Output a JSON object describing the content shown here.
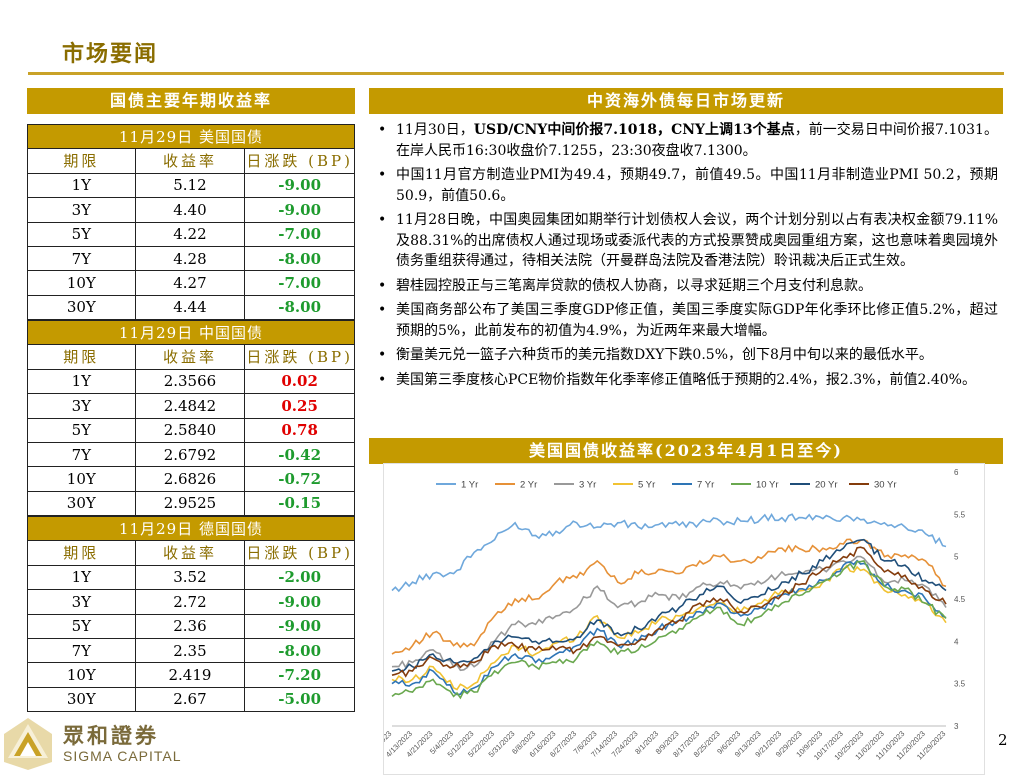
{
  "page_title": "市场要闻",
  "left_header": "国债主要年期收益率",
  "right_header": "中资海外债每日市场更新",
  "chart_header": "美国国债收益率(2023年4月1日至今)",
  "table_headers": [
    "期限",
    "收益率",
    "日涨跌 (BP)"
  ],
  "sections": [
    {
      "title": "11月29日   美国国债",
      "rows": [
        [
          "1Y",
          "5.12",
          "-9.00"
        ],
        [
          "3Y",
          "4.40",
          "-9.00"
        ],
        [
          "5Y",
          "4.22",
          "-7.00"
        ],
        [
          "7Y",
          "4.28",
          "-8.00"
        ],
        [
          "10Y",
          "4.27",
          "-7.00"
        ],
        [
          "30Y",
          "4.44",
          "-8.00"
        ]
      ]
    },
    {
      "title": "11月29日   中国国债",
      "rows": [
        [
          "1Y",
          "2.3566",
          "0.02"
        ],
        [
          "3Y",
          "2.4842",
          "0.25"
        ],
        [
          "5Y",
          "2.5840",
          "0.78"
        ],
        [
          "7Y",
          "2.6792",
          "-0.42"
        ],
        [
          "10Y",
          "2.6826",
          "-0.72"
        ],
        [
          "30Y",
          "2.9525",
          "-0.15"
        ]
      ]
    },
    {
      "title": "11月29日   德国国债",
      "rows": [
        [
          "1Y",
          "3.52",
          "-2.00"
        ],
        [
          "3Y",
          "2.72",
          "-9.00"
        ],
        [
          "5Y",
          "2.36",
          "-9.00"
        ],
        [
          "7Y",
          "2.35",
          "-8.00"
        ],
        [
          "10Y",
          "2.419",
          "-7.20"
        ],
        [
          "30Y",
          "2.67",
          "-5.00"
        ]
      ]
    }
  ],
  "news": [
    {
      "pre": "11月30日，",
      "bold": "USD/CNY中间价报7.1018，CNY上调13个基点",
      "post": "，前一交易日中间价报7.1031。在岸人民币16:30收盘价7.1255，23:30夜盘收7.1300。"
    },
    {
      "pre": "中国11月官方制造业PMI为49.4，预期49.7，前值49.5。中国11月非制造业PMI 50.2，预期50.9，前值50.6。",
      "bold": "",
      "post": ""
    },
    {
      "pre": "11月28日晚，中国奥园集团如期举行计划债权人会议，两个计划分别以占有表决权金额79.11%及88.31%的出席债权人通过现场或委派代表的方式投票赞成奥园重组方案，这也意味着奥园境外债务重组获得通过，待相关法院（开曼群岛法院及香港法院）聆讯裁决后正式生效。",
      "bold": "",
      "post": ""
    },
    {
      "pre": "碧桂园控股正与三笔离岸贷款的债权人协商，以寻求延期三个月支付利息款。",
      "bold": "",
      "post": ""
    },
    {
      "pre": "美国商务部公布了美国三季度GDP修正值，美国三季度实际GDP年化季环比修正值5.2%，超过预期的5%，此前发布的初值为4.9%，为近两年来最大增幅。",
      "bold": "",
      "post": ""
    },
    {
      "pre": "衡量美元兑一篮子六种货币的美元指数DXY下跌0.5%，创下8月中旬以来的最低水平。",
      "bold": "",
      "post": ""
    },
    {
      "pre": "美国第三季度核心PCE物价指数年化季率修正值略低于预期的2.4%，报2.3%，前值2.40%。",
      "bold": "",
      "post": ""
    }
  ],
  "chart_data": {
    "type": "line",
    "ylim": [
      3,
      6
    ],
    "y_ticks": [
      "3",
      "3.5",
      "4",
      "4.5",
      "5",
      "5.5",
      "6"
    ],
    "x_ticks": [
      "4/4/2023",
      "4/13/2023",
      "4/21/2023",
      "5/4/2023",
      "5/12/2023",
      "5/22/2023",
      "5/31/2023",
      "6/8/2023",
      "6/16/2023",
      "6/27/2023",
      "7/6/2023",
      "7/14/2023",
      "7/24/2023",
      "8/1/2023",
      "8/9/2023",
      "8/17/2023",
      "8/25/2023",
      "9/6/2023",
      "9/13/2023",
      "9/21/2023",
      "9/29/2023",
      "10/9/2023",
      "10/17/2023",
      "10/25/2023",
      "11/02/2023",
      "11/10/2023",
      "11/20/2023",
      "11/29/2023"
    ],
    "series": [
      {
        "name": "1 Yr",
        "color": "#6fa8dc",
        "values": [
          4.6,
          4.7,
          4.8,
          4.8,
          5.05,
          5.2,
          5.4,
          5.25,
          5.3,
          5.4,
          5.35,
          5.4,
          5.35,
          5.38,
          5.37,
          5.4,
          5.42,
          5.42,
          5.45,
          5.46,
          5.46,
          5.45,
          5.46,
          5.44,
          5.4,
          5.35,
          5.27,
          5.12
        ]
      },
      {
        "name": "2 Yr",
        "color": "#e69138",
        "values": [
          3.85,
          3.95,
          4.1,
          3.95,
          3.95,
          4.3,
          4.5,
          4.5,
          4.7,
          4.75,
          4.95,
          4.7,
          4.8,
          4.85,
          4.8,
          4.95,
          5.0,
          4.95,
          4.98,
          5.1,
          5.08,
          5.1,
          5.15,
          5.2,
          5.0,
          5.02,
          4.95,
          4.65
        ]
      },
      {
        "name": "3 Yr",
        "color": "#999999",
        "values": [
          3.7,
          3.75,
          3.9,
          3.7,
          3.7,
          4.0,
          4.2,
          4.2,
          4.3,
          4.4,
          4.65,
          4.4,
          4.45,
          4.55,
          4.5,
          4.65,
          4.7,
          4.62,
          4.68,
          4.82,
          4.8,
          4.85,
          4.95,
          4.98,
          4.7,
          4.72,
          4.65,
          4.4
        ]
      },
      {
        "name": "5 Yr",
        "color": "#f1c232",
        "values": [
          3.55,
          3.55,
          3.7,
          3.45,
          3.5,
          3.75,
          3.95,
          3.85,
          3.98,
          4.05,
          4.3,
          4.05,
          4.1,
          4.25,
          4.3,
          4.4,
          4.45,
          4.35,
          4.45,
          4.6,
          4.6,
          4.7,
          4.85,
          4.85,
          4.6,
          4.55,
          4.45,
          4.22
        ]
      },
      {
        "name": "7 Yr",
        "color": "#2e75b6",
        "values": [
          3.5,
          3.5,
          3.65,
          3.4,
          3.45,
          3.7,
          3.85,
          3.75,
          3.85,
          3.95,
          4.15,
          3.95,
          4.0,
          4.15,
          4.25,
          4.35,
          4.45,
          4.3,
          4.4,
          4.55,
          4.62,
          4.72,
          4.9,
          4.92,
          4.65,
          4.6,
          4.5,
          4.28
        ]
      },
      {
        "name": "10 Yr",
        "color": "#6aa84f",
        "values": [
          3.35,
          3.4,
          3.55,
          3.35,
          3.4,
          3.65,
          3.75,
          3.7,
          3.75,
          3.8,
          4.0,
          3.85,
          3.9,
          4.05,
          4.15,
          4.3,
          4.4,
          4.2,
          4.3,
          4.45,
          4.55,
          4.7,
          4.85,
          4.95,
          4.65,
          4.62,
          4.45,
          4.27
        ]
      },
      {
        "name": "20 Yr",
        "color": "#1f4e79",
        "values": [
          3.65,
          3.7,
          3.85,
          3.75,
          3.8,
          4.0,
          4.05,
          4.0,
          4.0,
          4.05,
          4.25,
          4.1,
          4.15,
          4.3,
          4.4,
          4.55,
          4.65,
          4.45,
          4.55,
          4.7,
          4.8,
          4.95,
          5.1,
          5.2,
          4.95,
          4.9,
          4.72,
          4.6
        ]
      },
      {
        "name": "30 Yr",
        "color": "#843c0c",
        "values": [
          3.6,
          3.65,
          3.8,
          3.7,
          3.75,
          3.95,
          3.95,
          3.9,
          3.9,
          3.9,
          4.05,
          3.95,
          4.0,
          4.15,
          4.25,
          4.45,
          4.5,
          4.35,
          4.4,
          4.55,
          4.68,
          4.85,
          5.0,
          5.1,
          4.82,
          4.78,
          4.6,
          4.44
        ]
      }
    ]
  },
  "logo": {
    "cn": "眾和證券",
    "en": "SIGMA CAPITAL"
  },
  "page_number": "2"
}
